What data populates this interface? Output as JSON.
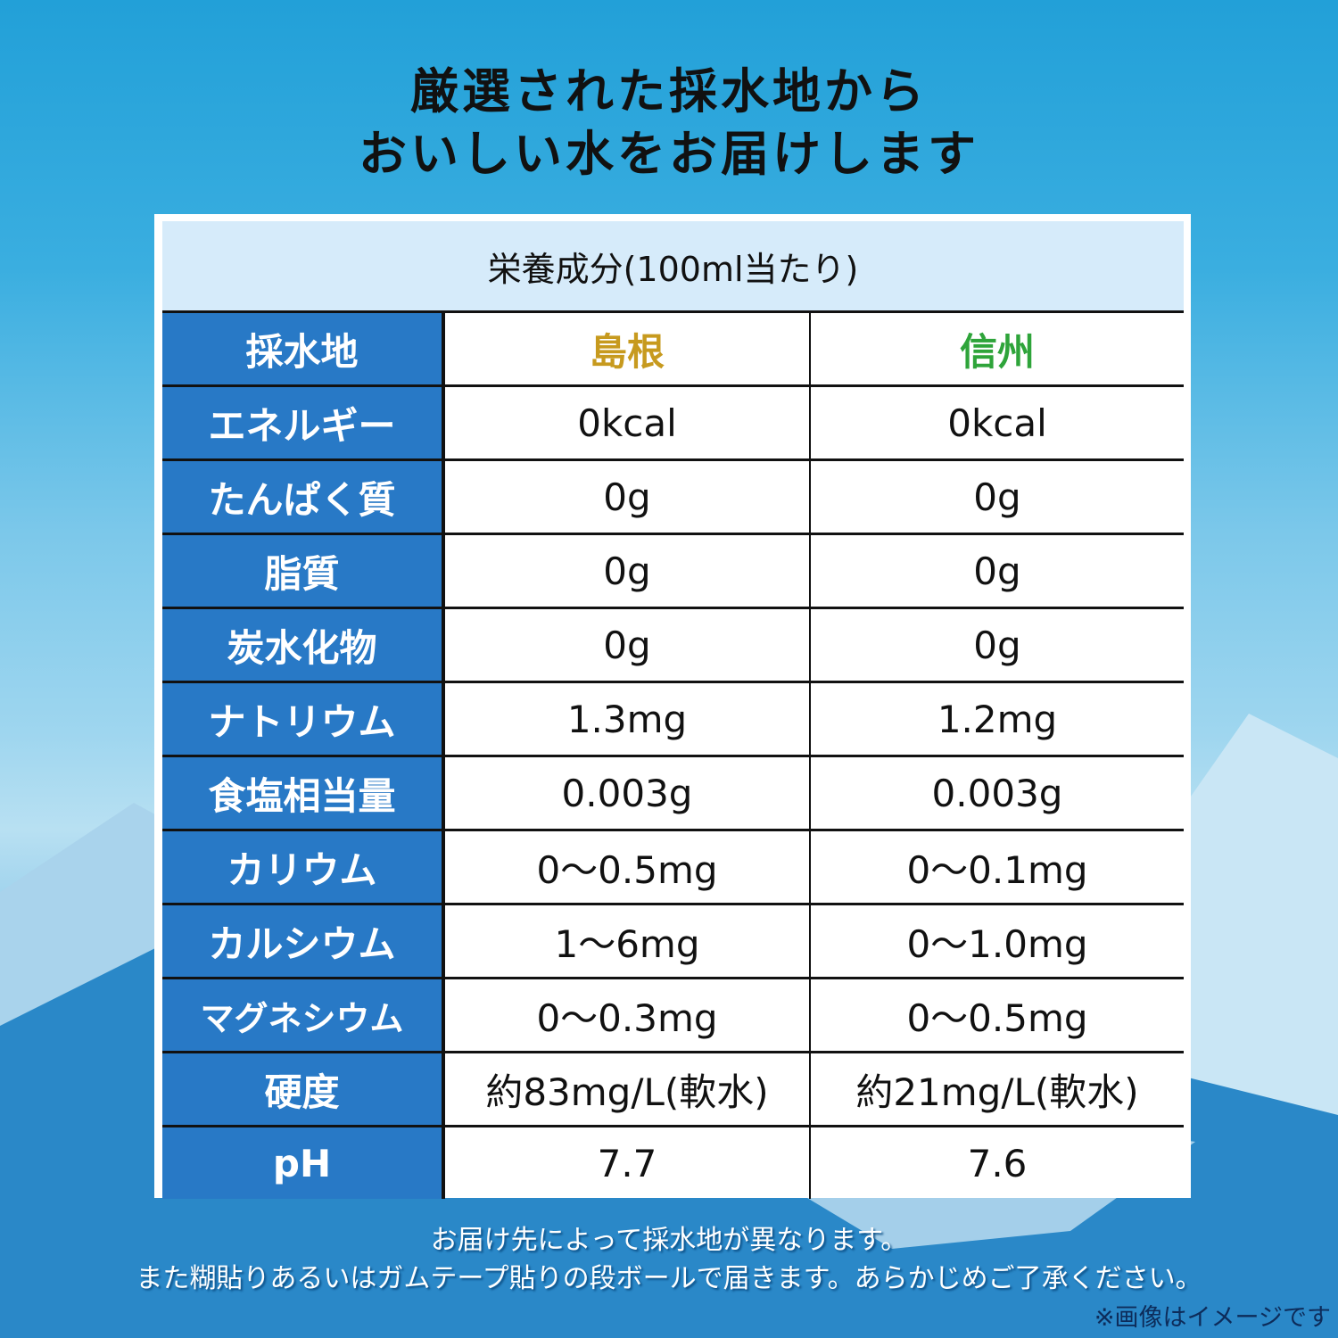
{
  "headline": [
    "厳選された採水地から",
    "おいしい水をお届けします"
  ],
  "table": {
    "caption": "栄養成分(100ml当たり)",
    "header": {
      "label": "採水地",
      "col1": "島根",
      "col2": "信州",
      "col1_color": "#c79a1e",
      "col2_color": "#2ea43a"
    },
    "rows": [
      {
        "label": "エネルギー",
        "v1": "0kcal",
        "v2": "0kcal"
      },
      {
        "label": "たんぱく質",
        "v1": "0g",
        "v2": "0g"
      },
      {
        "label": "脂質",
        "v1": "0g",
        "v2": "0g"
      },
      {
        "label": "炭水化物",
        "v1": "0g",
        "v2": "0g"
      },
      {
        "label": "ナトリウム",
        "v1": "1.3mg",
        "v2": "1.2mg"
      },
      {
        "label": "食塩相当量",
        "v1": "0.003g",
        "v2": "0.003g"
      },
      {
        "label": "カリウム",
        "v1": "0〜0.5mg",
        "v2": "0〜0.1mg"
      },
      {
        "label": "カルシウム",
        "v1": "1〜6mg",
        "v2": "0〜1.0mg"
      },
      {
        "label": "マグネシウム",
        "v1": "0〜0.3mg",
        "v2": "0〜0.5mg"
      },
      {
        "label": "硬度",
        "v1": "約83mg/L(軟水)",
        "v2": "約21mg/L(軟水)"
      },
      {
        "label": "pH",
        "v1": "7.7",
        "v2": "7.6"
      }
    ]
  },
  "footer": [
    "お届け先によって採水地が異なります。",
    "また糊貼りあるいはガムテープ貼りの段ボールで届きます。あらかじめご了承ください。"
  ],
  "note": "※画像はイメージです",
  "colors": {
    "label_bg": "#2879c6",
    "caption_bg": "#d6ebfa"
  }
}
